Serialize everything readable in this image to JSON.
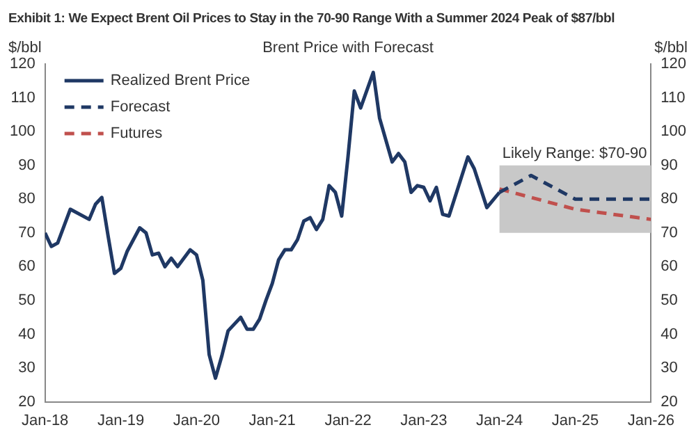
{
  "chart_data": {
    "type": "line",
    "title": "Exhibit 1: We Expect Brent Oil Prices to Stay in the 70-90 Range With a Summer 2024 Peak of $87/bbl",
    "subtitle": "Brent Price with Forecast",
    "ylabel": "$/bbl",
    "y2label": "$/bbl",
    "xlim": [
      "2018-01",
      "2026-01"
    ],
    "xticks": [
      {
        "value": "2018-01",
        "label": "Jan-18"
      },
      {
        "value": "2019-01",
        "label": "Jan-19"
      },
      {
        "value": "2020-01",
        "label": "Jan-20"
      },
      {
        "value": "2021-01",
        "label": "Jan-21"
      },
      {
        "value": "2022-01",
        "label": "Jan-22"
      },
      {
        "value": "2023-01",
        "label": "Jan-23"
      },
      {
        "value": "2024-01",
        "label": "Jan-24"
      },
      {
        "value": "2025-01",
        "label": "Jan-25"
      },
      {
        "value": "2026-01",
        "label": "Jan-26"
      }
    ],
    "ylim": [
      20,
      120
    ],
    "yticks": [
      20,
      30,
      40,
      50,
      60,
      70,
      80,
      90,
      100,
      110,
      120
    ],
    "y2lim": [
      20,
      120
    ],
    "y2ticks": [
      20,
      30,
      40,
      50,
      60,
      70,
      80,
      90,
      100,
      110,
      120
    ],
    "grid": false,
    "legend": "top left",
    "marker": "none",
    "bands": [
      {
        "axis": "y",
        "from": 70,
        "to": 90,
        "label": "Likely Range: $70-90",
        "color": "#c8c8c8"
      }
    ],
    "series": [
      {
        "name": "Realized Brent Price",
        "color": "#1f3864",
        "line_style": "solid",
        "x": [
          "2018-01",
          "2018-02",
          "2018-03",
          "2018-05",
          "2018-08",
          "2018-09",
          "2018-10",
          "2018-11",
          "2018-12",
          "2019-01",
          "2019-02",
          "2019-04",
          "2019-05",
          "2019-06",
          "2019-07",
          "2019-08",
          "2019-09",
          "2019-10",
          "2019-12",
          "2020-01",
          "2020-02",
          "2020-03",
          "2020-04",
          "2020-05",
          "2020-06",
          "2020-07",
          "2020-08",
          "2020-09",
          "2020-10",
          "2020-11",
          "2020-12",
          "2021-01",
          "2021-02",
          "2021-03",
          "2021-04",
          "2021-05",
          "2021-06",
          "2021-07",
          "2021-08",
          "2021-09",
          "2021-10",
          "2021-11",
          "2021-12",
          "2022-01",
          "2022-02",
          "2022-03",
          "2022-05",
          "2022-06",
          "2022-08",
          "2022-09",
          "2022-10",
          "2022-11",
          "2022-12",
          "2023-01",
          "2023-02",
          "2023-03",
          "2023-04",
          "2023-05",
          "2023-08",
          "2023-09",
          "2023-11",
          "2024-01"
        ],
        "values": [
          70,
          66,
          67,
          77,
          74,
          78.5,
          80.5,
          69,
          58,
          59.5,
          64.5,
          71.5,
          70,
          63.5,
          64,
          60,
          62.5,
          60,
          65,
          63.5,
          56,
          34,
          27,
          33.5,
          41,
          43,
          45,
          41.5,
          41.5,
          44.5,
          50,
          55,
          62,
          65,
          65,
          68,
          73.5,
          74.5,
          71,
          74,
          84,
          82,
          75,
          92.5,
          112,
          107,
          117.5,
          104,
          91,
          93.5,
          91,
          82,
          84,
          83.5,
          79.5,
          83.5,
          75.5,
          75,
          92.5,
          89,
          77.5,
          82
        ]
      },
      {
        "name": "Forecast",
        "color": "#1f3864",
        "line_style": "dashed",
        "x": [
          "2024-01",
          "2024-06",
          "2025-01",
          "2026-01"
        ],
        "values": [
          82,
          87,
          80,
          80
        ]
      },
      {
        "name": "Futures",
        "color": "#c0504d",
        "line_style": "dashed",
        "x": [
          "2024-01",
          "2025-01",
          "2026-01"
        ],
        "values": [
          83,
          77,
          74
        ]
      }
    ]
  }
}
